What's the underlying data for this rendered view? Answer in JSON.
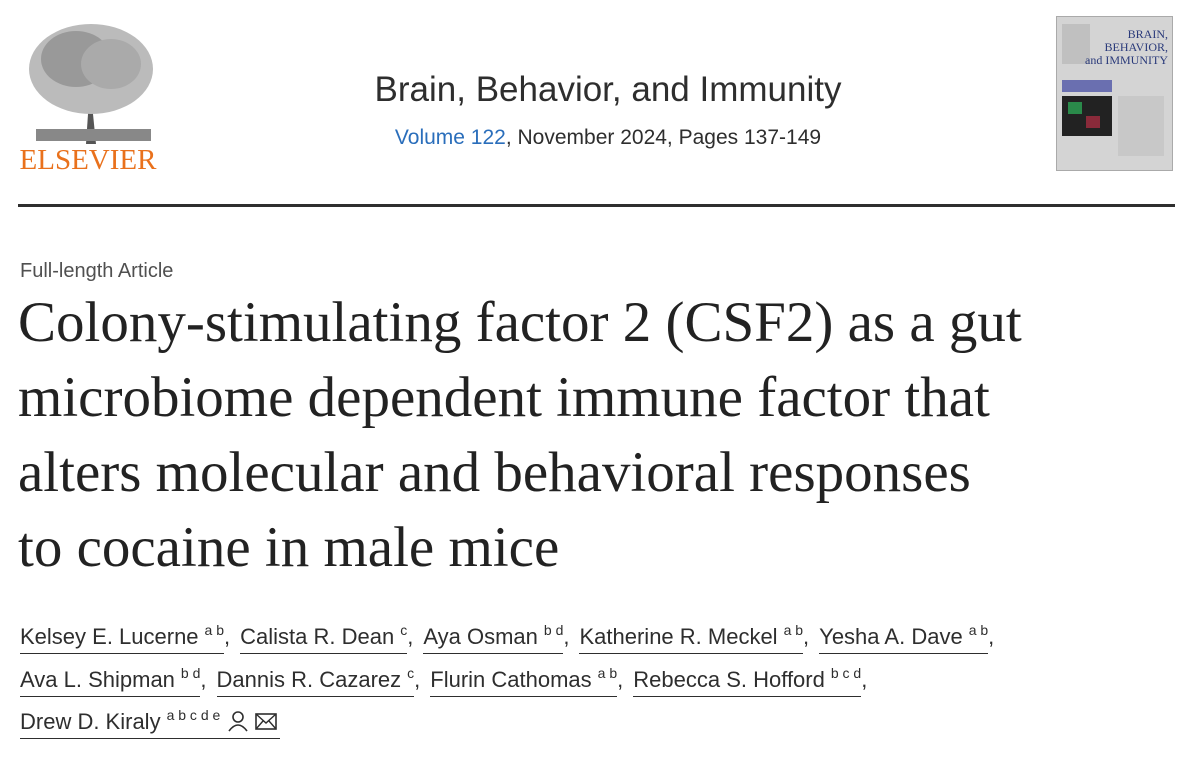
{
  "publisher": {
    "logo_text": "ELSEVIER"
  },
  "journal": {
    "title": "Brain, Behavior, and Immunity",
    "volume": "Volume 122",
    "details": ", November 2024, Pages 137-149",
    "cover_lines": [
      "BRAIN,",
      "BEHAVIOR,",
      "and IMMUNITY"
    ]
  },
  "article": {
    "type": "Full-length Article",
    "title_lines": [
      "Colony-stimulating factor 2 (CSF2) as a gut",
      "microbiome dependent immune factor that",
      "alters molecular and behavioral responses",
      "to cocaine in male mice"
    ],
    "separator": ",",
    "author_lines": [
      [
        {
          "name": "Kelsey E. Lucerne",
          "aff": "a b"
        },
        {
          "name": "Calista R. Dean",
          "aff": "c"
        },
        {
          "name": "Aya Osman",
          "aff": "b d"
        },
        {
          "name": "Katherine R. Meckel",
          "aff": "a b"
        },
        {
          "name": "Yesha A. Dave",
          "aff": "a b"
        }
      ],
      [
        {
          "name": "Ava L. Shipman",
          "aff": "b d"
        },
        {
          "name": "Dannis R. Cazarez",
          "aff": "c"
        },
        {
          "name": "Flurin Cathomas",
          "aff": "a b"
        },
        {
          "name": "Rebecca S. Hofford",
          "aff": "b c d"
        }
      ],
      [
        {
          "name": "Drew D. Kiraly",
          "aff": "a b c d e"
        }
      ]
    ]
  }
}
